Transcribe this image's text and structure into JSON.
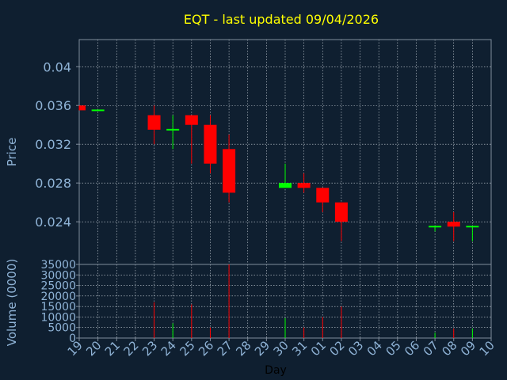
{
  "chart_data": {
    "type": "candlestick",
    "title": "EQT - last updated 09/04/2026",
    "xlabel": "Day",
    "price_panel": {
      "ylabel": "Price",
      "ylim": [
        0.0196,
        0.0428
      ],
      "yticks": [
        0.024,
        0.028,
        0.032,
        0.036,
        0.04
      ],
      "ytick_labels": [
        "0.024",
        "0.028",
        "0.032",
        "0.036",
        "0.04"
      ]
    },
    "volume_panel": {
      "ylabel": "Volume (0000)",
      "ylim": [
        0,
        35000
      ],
      "yticks": [
        0,
        5000,
        10000,
        15000,
        20000,
        25000,
        30000,
        35000
      ],
      "ytick_labels": [
        "0",
        "5000",
        "10000",
        "15000",
        "20000",
        "25000",
        "30000",
        "35000"
      ]
    },
    "grid": true,
    "x_tick_labels": [
      "19",
      "20",
      "21",
      "22",
      "23",
      "24",
      "25",
      "26",
      "27",
      "28",
      "29",
      "30",
      "31",
      "01",
      "02",
      "03",
      "04",
      "05",
      "06",
      "07",
      "08",
      "09",
      "10"
    ],
    "candles": [
      {
        "day": "19",
        "open": 0.036,
        "high": 0.036,
        "low": 0.0355,
        "close": 0.0355,
        "volume": 0
      },
      {
        "day": "20",
        "open": 0.0355,
        "high": 0.0355,
        "low": 0.0355,
        "close": 0.0355,
        "volume": 0
      },
      {
        "day": "23",
        "open": 0.035,
        "high": 0.036,
        "low": 0.032,
        "close": 0.0335,
        "volume": 17000
      },
      {
        "day": "24",
        "open": 0.0335,
        "high": 0.035,
        "low": 0.0315,
        "close": 0.0335,
        "volume": 7000
      },
      {
        "day": "25",
        "open": 0.035,
        "high": 0.035,
        "low": 0.03,
        "close": 0.034,
        "volume": 16000
      },
      {
        "day": "26",
        "open": 0.034,
        "high": 0.035,
        "low": 0.029,
        "close": 0.03,
        "volume": 5000
      },
      {
        "day": "27",
        "open": 0.0315,
        "high": 0.033,
        "low": 0.026,
        "close": 0.027,
        "volume": 35000
      },
      {
        "day": "30",
        "open": 0.0275,
        "high": 0.03,
        "low": 0.0275,
        "close": 0.028,
        "volume": 9500
      },
      {
        "day": "31",
        "open": 0.028,
        "high": 0.029,
        "low": 0.027,
        "close": 0.0275,
        "volume": 5000
      },
      {
        "day": "01",
        "open": 0.0275,
        "high": 0.0275,
        "low": 0.025,
        "close": 0.026,
        "volume": 10000
      },
      {
        "day": "02",
        "open": 0.026,
        "high": 0.026,
        "low": 0.022,
        "close": 0.024,
        "volume": 15000
      },
      {
        "day": "07",
        "open": 0.0235,
        "high": 0.0235,
        "low": 0.023,
        "close": 0.0235,
        "volume": 2500
      },
      {
        "day": "08",
        "open": 0.024,
        "high": 0.025,
        "low": 0.022,
        "close": 0.0235,
        "volume": 4500
      },
      {
        "day": "09",
        "open": 0.0235,
        "high": 0.0235,
        "low": 0.022,
        "close": 0.0235,
        "volume": 4500
      }
    ],
    "colors": {
      "background": "#0f1f30",
      "axes": "#7f8c9b",
      "grid": "#c8d0d8",
      "tick_text": "#8fb3d6",
      "title": "#ffff00",
      "up": "#00ff00",
      "down": "#ff0000",
      "xlabel": "#000000"
    }
  }
}
